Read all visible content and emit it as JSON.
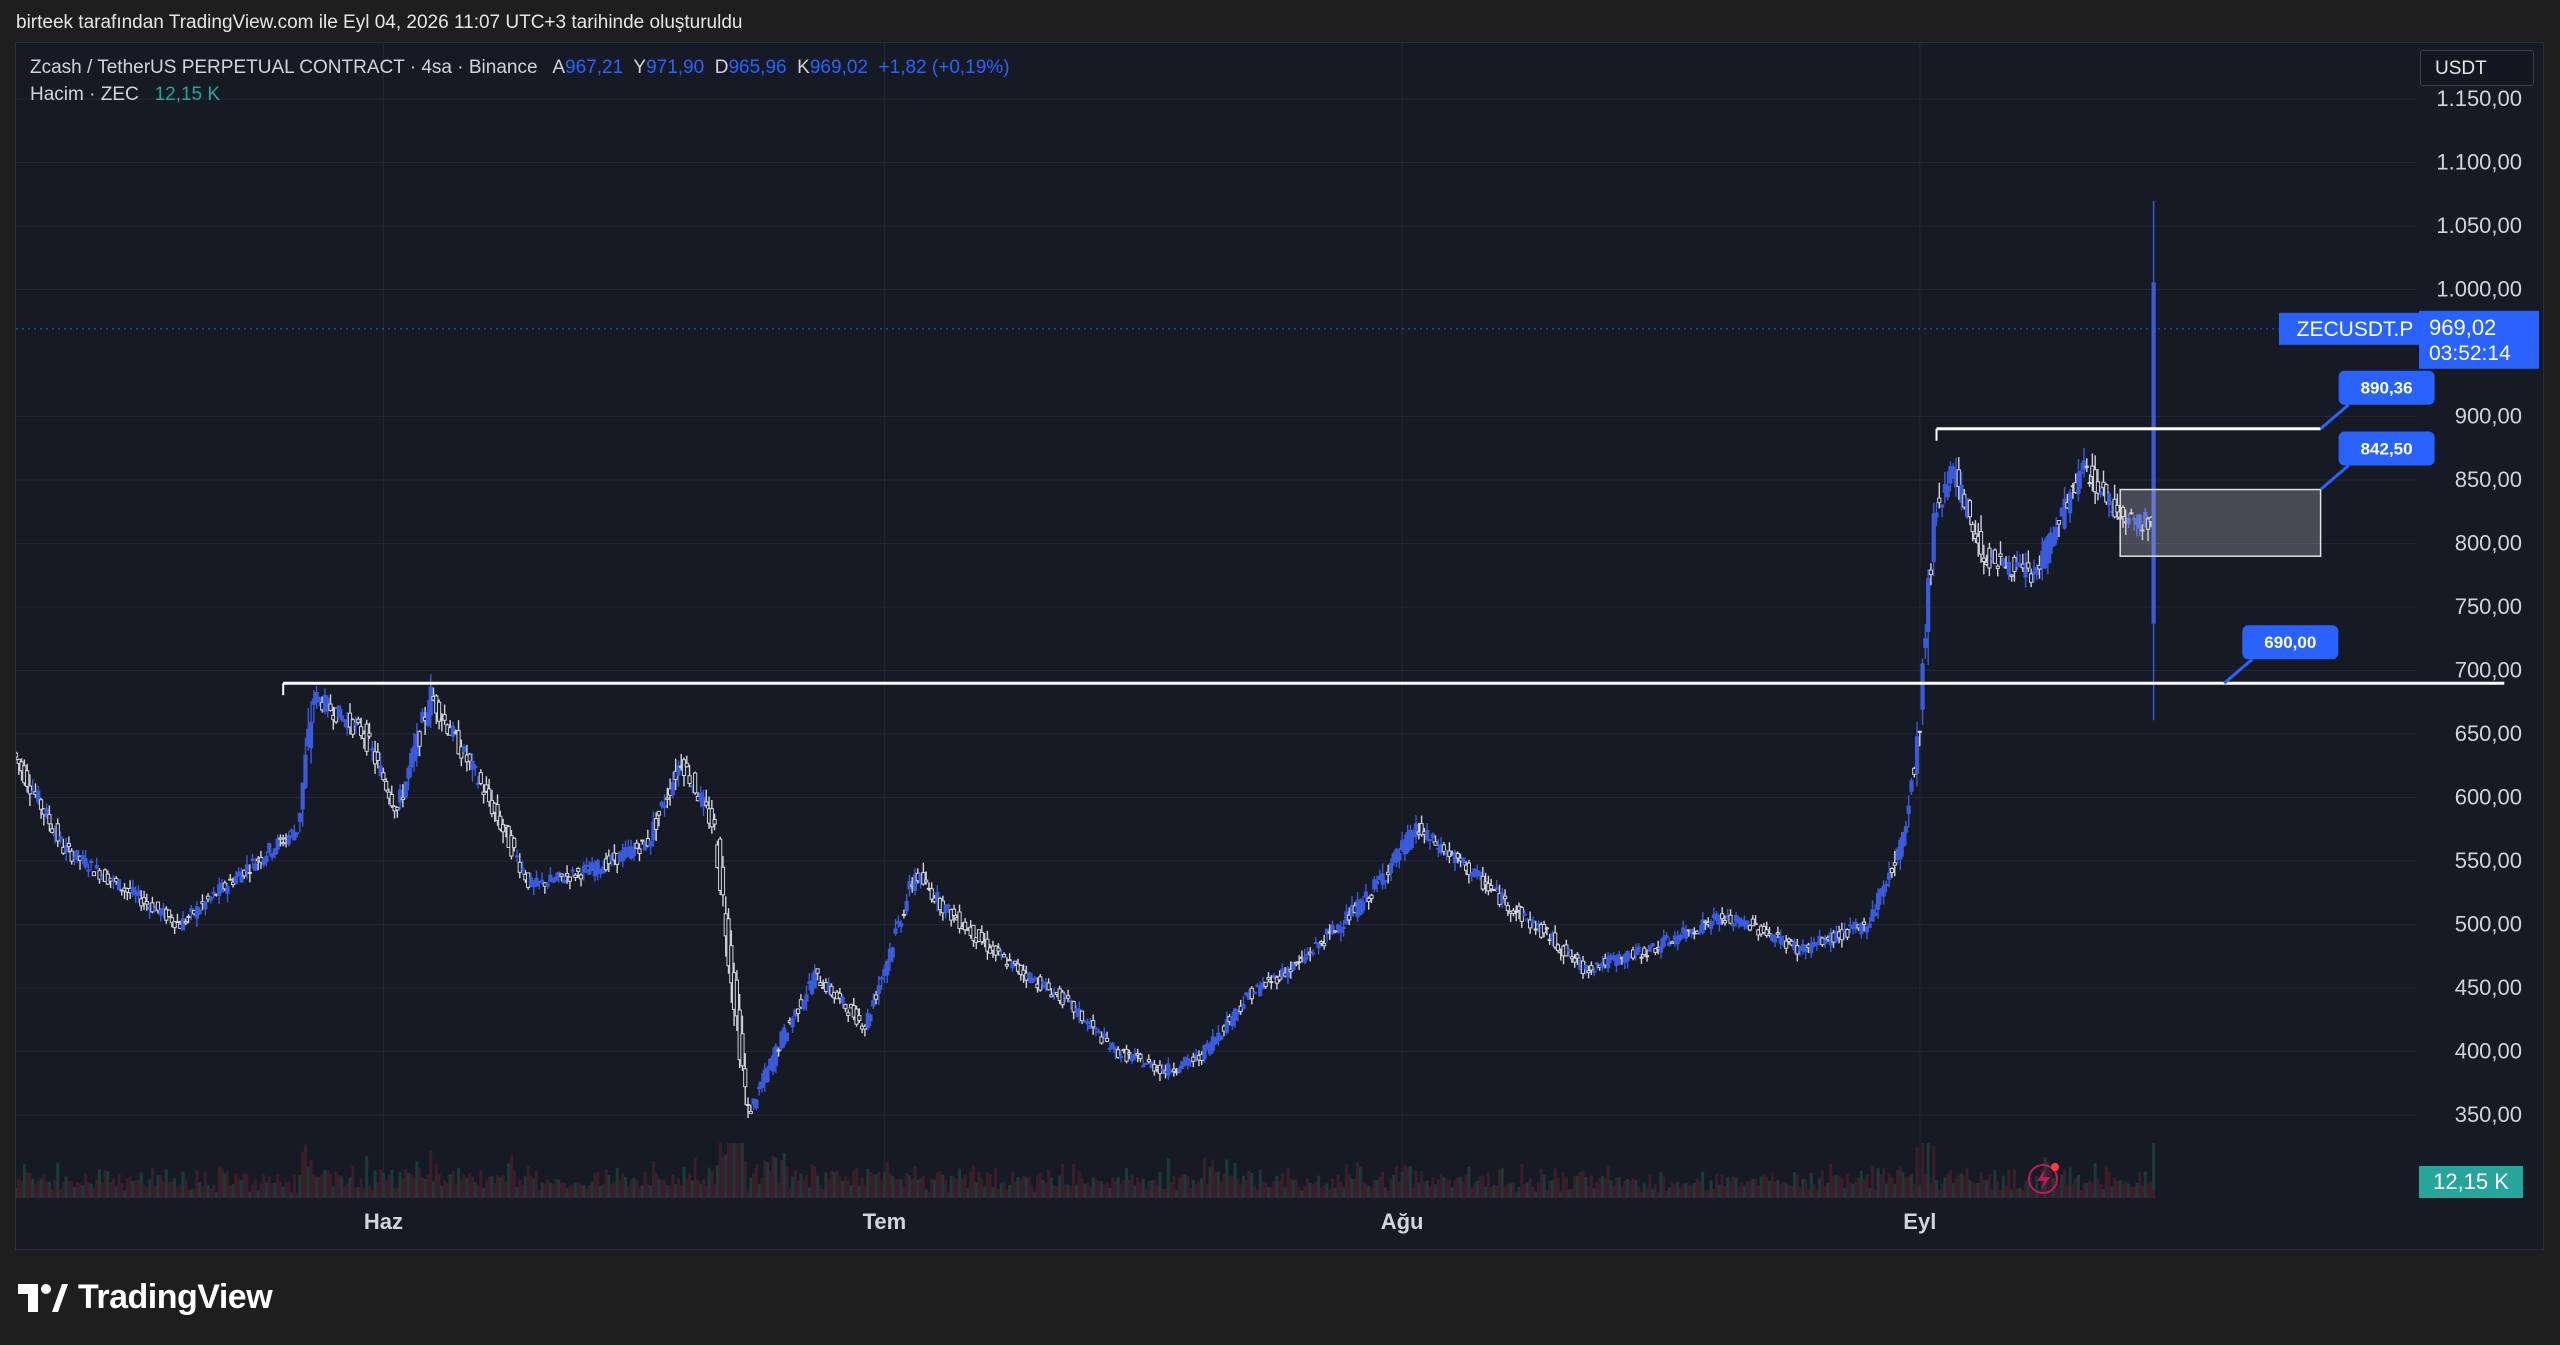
{
  "caption": "birteek tarafından TradingView.com ile Eyl 04, 2026 11:07 UTC+3 tarihinde oluşturuldu",
  "legend": {
    "symbol": "Zcash / TetherUS PERPETUAL CONTRACT · 4sa · Binance",
    "open_label": "A",
    "open_value": "967,21",
    "high_label": "Y",
    "high_value": "971,90",
    "low_label": "D",
    "low_value": "965,96",
    "close_label": "K",
    "close_value": "969,02",
    "change": "+1,82 (+0,19%)",
    "volume_label": "Hacim · ZEC",
    "volume_value": "12,15 K"
  },
  "currency": "USDT",
  "footer_brand": "TradingView",
  "colors": {
    "accent": "#2962ff",
    "candle": "#d1d4dc",
    "volume": "#26a69a",
    "level_line": "#ffffff",
    "background": "#161a25"
  },
  "chart_data": {
    "type": "candlestick",
    "symbol": "ZECUSDT.P",
    "interval": "4sa",
    "y_ticks": [
      "1.150,00",
      "1.100,00",
      "1.050,00",
      "1.000,00",
      "900,00",
      "850,00",
      "800,00",
      "750,00",
      "700,00",
      "650,00",
      "600,00",
      "550,00",
      "500,00",
      "450,00",
      "400,00",
      "350,00"
    ],
    "y_tick_values": [
      1150,
      1100,
      1050,
      1000,
      900,
      850,
      800,
      750,
      700,
      650,
      600,
      550,
      500,
      450,
      400,
      350
    ],
    "ylim": [
      305,
      1185
    ],
    "x_ticks": [
      "Haz",
      "Tem",
      "Ağu",
      "Eyl"
    ],
    "x_range": [
      "2026-05-10",
      "2026-09-20"
    ],
    "x_tick_dates": [
      "2026-06-01",
      "2026-07-01",
      "2026-08-01",
      "2026-09-01"
    ],
    "last_price": {
      "label": "ZECUSDT.P",
      "value": "969,02",
      "countdown": "03:52:14",
      "price": 969.02
    },
    "volume_badge": "12,15 K",
    "price_path": [
      [
        "2026-05-10",
        635
      ],
      [
        "2026-05-13",
        560
      ],
      [
        "2026-05-17",
        525
      ],
      [
        "2026-05-20",
        500
      ],
      [
        "2026-05-24",
        545
      ],
      [
        "2026-05-27",
        575
      ],
      [
        "2026-05-28",
        680
      ],
      [
        "2026-05-31",
        650
      ],
      [
        "2026-06-02",
        590
      ],
      [
        "2026-06-04",
        680
      ],
      [
        "2026-06-07",
        610
      ],
      [
        "2026-06-10",
        530
      ],
      [
        "2026-06-14",
        545
      ],
      [
        "2026-06-17",
        565
      ],
      [
        "2026-06-19",
        630
      ],
      [
        "2026-06-21",
        575
      ],
      [
        "2026-06-23",
        350
      ],
      [
        "2026-06-25",
        410
      ],
      [
        "2026-06-27",
        460
      ],
      [
        "2026-06-30",
        420
      ],
      [
        "2026-07-03",
        540
      ],
      [
        "2026-07-05",
        510
      ],
      [
        "2026-07-08",
        475
      ],
      [
        "2026-07-12",
        440
      ],
      [
        "2026-07-15",
        400
      ],
      [
        "2026-07-18",
        385
      ],
      [
        "2026-07-20",
        395
      ],
      [
        "2026-07-23",
        445
      ],
      [
        "2026-07-26",
        470
      ],
      [
        "2026-07-30",
        520
      ],
      [
        "2026-08-02",
        575
      ],
      [
        "2026-08-05",
        545
      ],
      [
        "2026-08-08",
        510
      ],
      [
        "2026-08-10",
        490
      ],
      [
        "2026-08-12",
        465
      ],
      [
        "2026-08-16",
        480
      ],
      [
        "2026-08-20",
        505
      ],
      [
        "2026-08-22",
        500
      ],
      [
        "2026-08-25",
        480
      ],
      [
        "2026-08-29",
        500
      ],
      [
        "2026-08-31",
        560
      ],
      [
        "2026-09-01",
        640
      ],
      [
        "2026-09-02",
        820
      ],
      [
        "2026-09-03",
        860
      ],
      [
        "2026-09-05",
        790
      ],
      [
        "2026-09-08",
        775
      ],
      [
        "2026-09-11",
        860
      ],
      [
        "2026-09-13",
        825
      ],
      [
        "2026-09-15",
        815
      ],
      [
        "2026-09-15",
        970
      ]
    ],
    "annotations": [
      {
        "label": "890,36",
        "price": 890.36,
        "from": "2026-09-02",
        "to": "2026-09-25"
      },
      {
        "label": "842,50",
        "zone_low": 790,
        "zone_high": 842.5,
        "from": "2026-09-13",
        "to": "2026-09-25"
      },
      {
        "label": "690,00",
        "price": 690.0,
        "from": "2026-05-26",
        "to": "2026-10-06"
      }
    ]
  }
}
